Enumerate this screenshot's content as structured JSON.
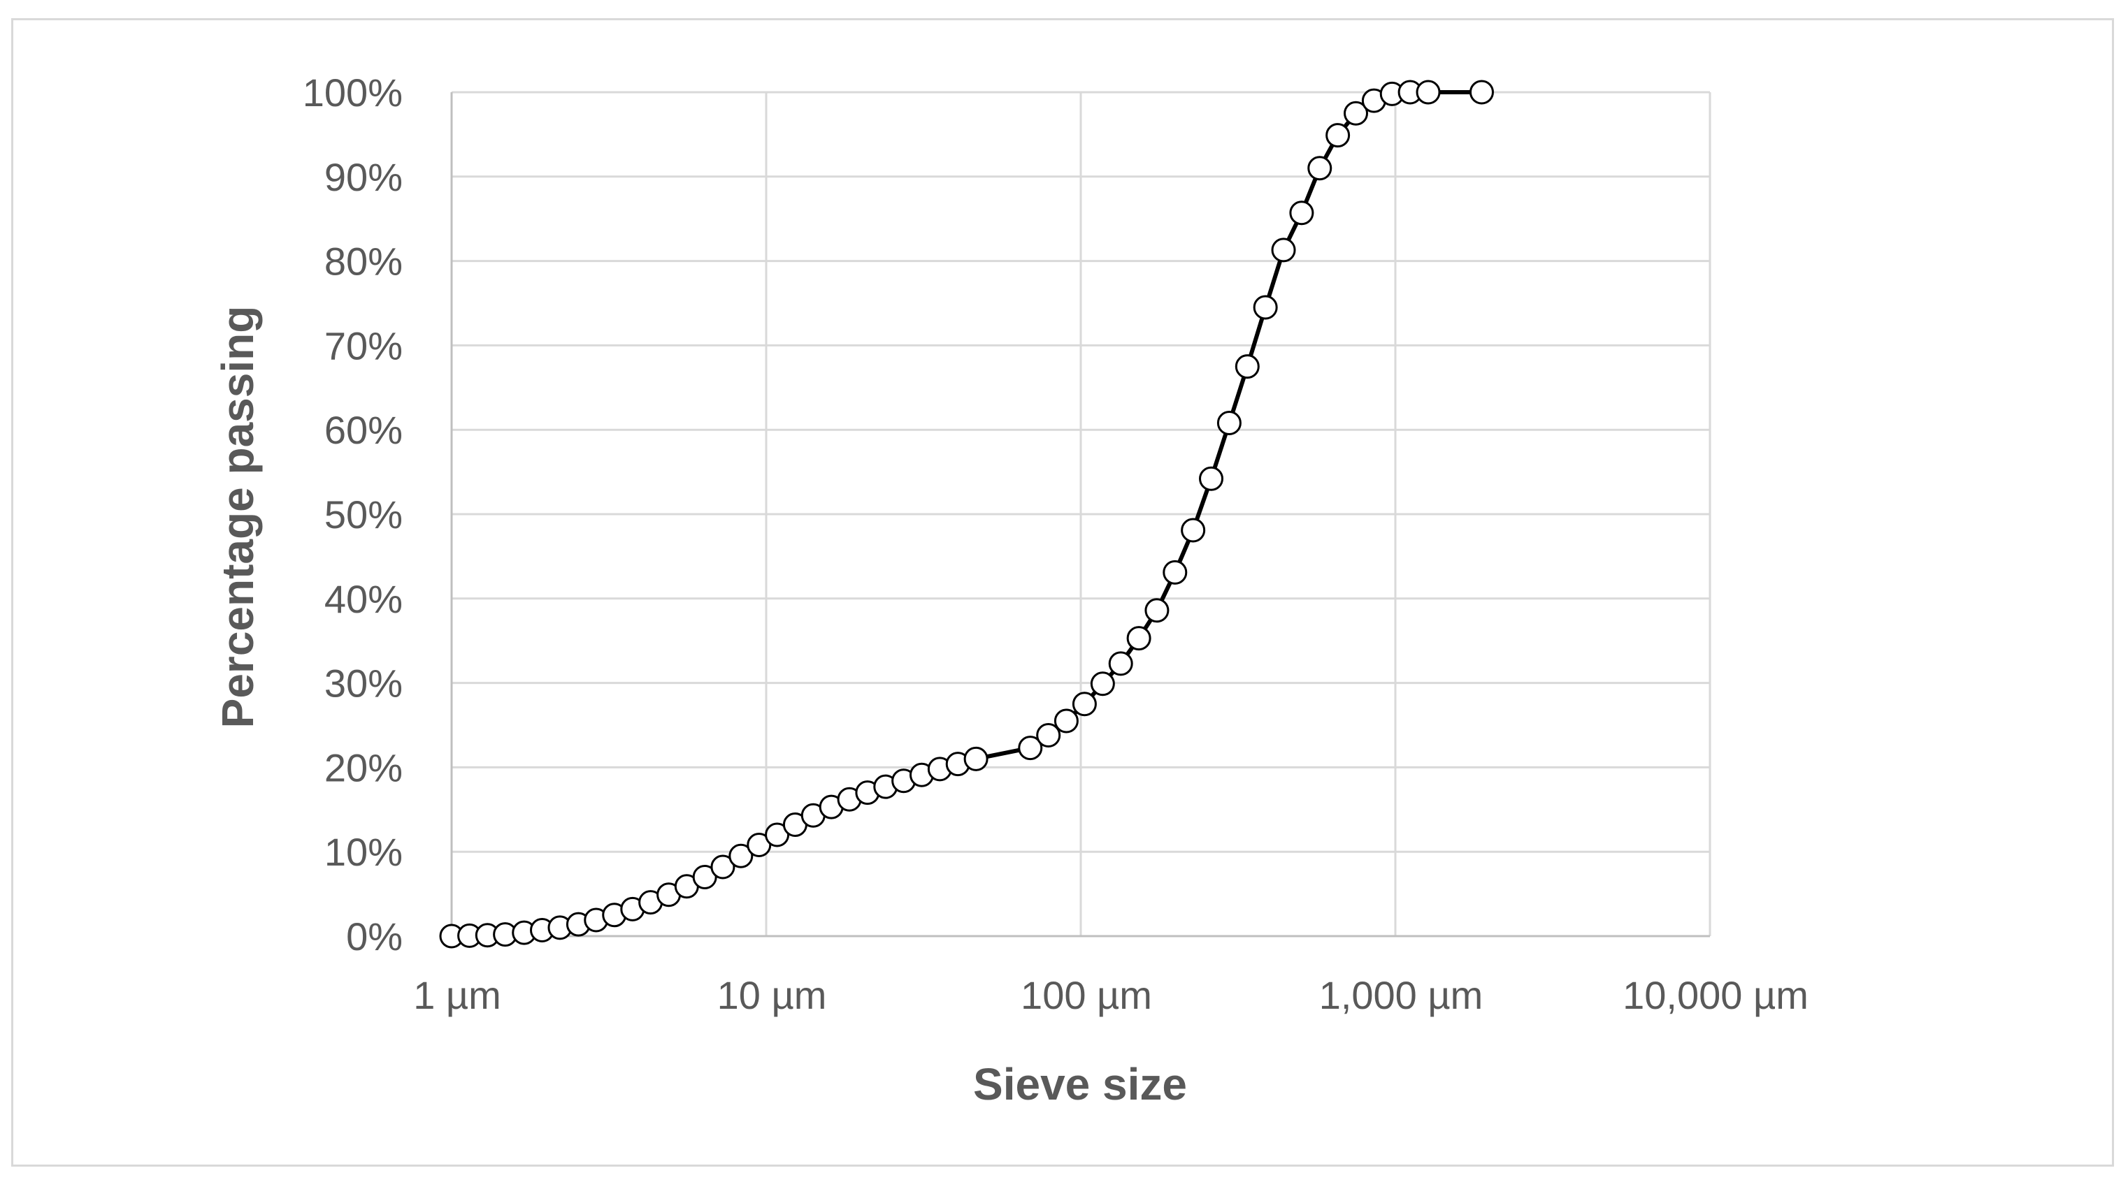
{
  "chart_data": {
    "type": "scatter",
    "title": "",
    "xlabel": "Sieve size",
    "ylabel": "Percentage passing",
    "x_scale": "log",
    "xlim": [
      1,
      10000
    ],
    "ylim": [
      0,
      100
    ],
    "grid": true,
    "legend": "none",
    "x_tick_values": [
      1,
      10,
      100,
      1000,
      10000
    ],
    "x_tick_labels": [
      "1 µm",
      "10 µm",
      "100 µm",
      "1,000 µm",
      "10,000 µm"
    ],
    "y_tick_values": [
      0,
      10,
      20,
      30,
      40,
      50,
      60,
      70,
      80,
      90,
      100
    ],
    "y_tick_labels": [
      "0%",
      "10%",
      "20%",
      "30%",
      "40%",
      "50%",
      "60%",
      "70%",
      "80%",
      "90%",
      "100%"
    ],
    "series": [
      {
        "line_color": "#000000",
        "marker": "open-circle",
        "x": [
          1.0,
          1.14,
          1.3,
          1.48,
          1.7,
          1.94,
          2.21,
          2.53,
          2.88,
          3.29,
          3.76,
          4.29,
          4.9,
          5.59,
          6.38,
          7.28,
          8.31,
          9.49,
          10.83,
          12.36,
          14.11,
          16.11,
          18.39,
          20.99,
          23.96,
          27.35,
          31.22,
          35.64,
          40.68,
          46.44,
          69.1,
          78.9,
          90.0,
          102.8,
          117.4,
          134.0,
          153.0,
          174.6,
          199.3,
          227.5,
          259.7,
          296.5,
          338.5,
          386.4,
          441.1,
          503.5,
          574.8,
          656.1,
          749.0,
          855.0,
          976.0,
          1114.0,
          1272.0,
          1881.0
        ],
        "y": [
          0.0,
          0.05,
          0.1,
          0.2,
          0.4,
          0.7,
          1.0,
          1.4,
          1.9,
          2.5,
          3.2,
          4.0,
          4.9,
          5.9,
          7.0,
          8.2,
          9.5,
          10.8,
          12.0,
          13.2,
          14.3,
          15.3,
          16.2,
          17.0,
          17.7,
          18.4,
          19.1,
          19.8,
          20.4,
          21.0,
          22.3,
          23.8,
          25.5,
          27.5,
          29.9,
          32.3,
          35.3,
          38.6,
          43.1,
          48.1,
          54.2,
          60.8,
          67.5,
          74.5,
          81.3,
          85.7,
          91.0,
          94.9,
          97.5,
          99.0,
          99.8,
          100.0,
          100.0,
          100.0
        ]
      }
    ]
  }
}
